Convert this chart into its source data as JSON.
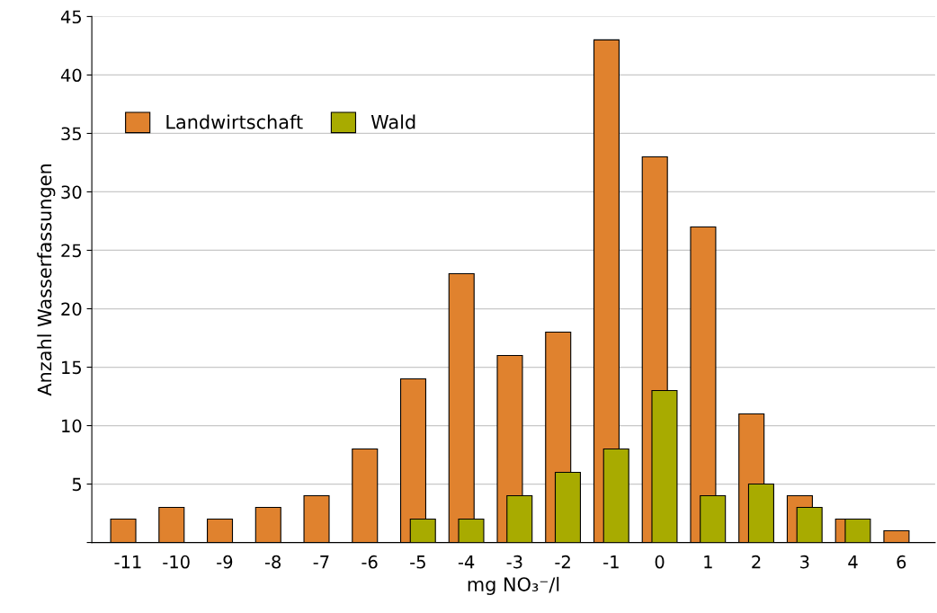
{
  "chart_data": {
    "type": "bar",
    "xlabel": "mg NO₃⁻/l",
    "ylabel": "Anzahl Wasserfassungen",
    "categories": [
      "-11",
      "-10",
      "-9",
      "-8",
      "-7",
      "-6",
      "-5",
      "-4",
      "-3",
      "-2",
      "-1",
      "0",
      "1",
      "2",
      "3",
      "4",
      "6"
    ],
    "series": [
      {
        "name": "Landwirtschaft",
        "color": "#e0822e",
        "values": [
          2,
          3,
          2,
          3,
          4,
          8,
          14,
          23,
          16,
          18,
          43,
          33,
          27,
          11,
          4,
          2,
          1
        ]
      },
      {
        "name": "Wald",
        "color": "#a8ab00",
        "values": [
          null,
          null,
          null,
          null,
          null,
          null,
          2,
          2,
          4,
          6,
          8,
          13,
          4,
          5,
          3,
          2,
          null
        ]
      }
    ],
    "ylim": [
      0,
      45
    ],
    "yticks": [
      {
        "value": 0,
        "label": null
      },
      5,
      10,
      15,
      20,
      25,
      30,
      35,
      40,
      45
    ],
    "grid": "y",
    "legend": "top left"
  }
}
